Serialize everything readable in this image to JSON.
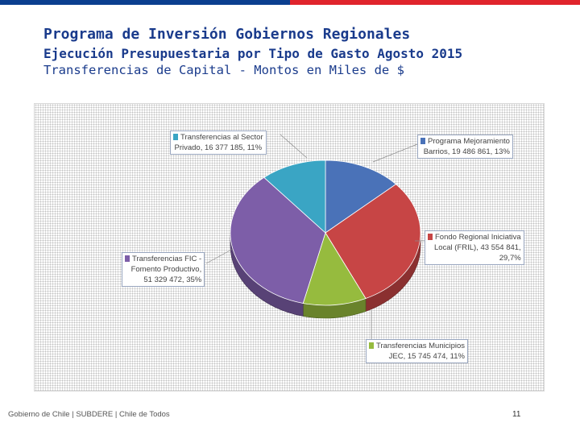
{
  "header": {
    "title": "Programa de Inversión Gobiernos Regionales",
    "subtitle": "Ejecución Presupuestaria por Tipo de Gasto Agosto 2015",
    "subtitle2": "Transferencias de Capital - Montos en Miles de $"
  },
  "colors": {
    "flag_blue": "#0b3f8f",
    "flag_red": "#e0242c",
    "title": "#1a3b8c"
  },
  "chart_data": {
    "type": "pie",
    "title": "",
    "slices": [
      {
        "name": "Programa Mejoramiento Barrios",
        "value": 19486861,
        "percent": 13,
        "color": "#4a72b8",
        "label_line1": "Programa Mejoramiento",
        "label_line2": "Barrios, 19 486 861, 13%"
      },
      {
        "name": "Fondo Regional Iniciativa Local (FRIL)",
        "value": 43554841,
        "percent": 29.7,
        "color": "#c74545",
        "label_line1": "Fondo Regional Iniciativa",
        "label_line2": "Local (FRIL), 43 554 841,",
        "label_line3": "29,7%"
      },
      {
        "name": "Transferencias Municipios JEC",
        "value": 15745474,
        "percent": 11,
        "color": "#96bb3e",
        "label_line1": "Transferencias Municipios",
        "label_line2": "JEC, 15 745 474, 11%"
      },
      {
        "name": "Transferencias FIC - Fomento Productivo",
        "value": 51329472,
        "percent": 35,
        "color": "#7d5ea8",
        "label_line1": "Transferencias FIC -",
        "label_line2": "Fomento Productivo,",
        "label_line3": "51 329 472, 35%"
      },
      {
        "name": "Transferencias al Sector Privado",
        "value": 16377185,
        "percent": 11,
        "color": "#3aa5c4",
        "label_line1": "Transferencias al Sector",
        "label_line2": "Privado, 16 377 185, 11%"
      }
    ]
  },
  "footer": {
    "text": "Gobierno de Chile | SUBDERE | Chile de Todos",
    "page": "11"
  }
}
